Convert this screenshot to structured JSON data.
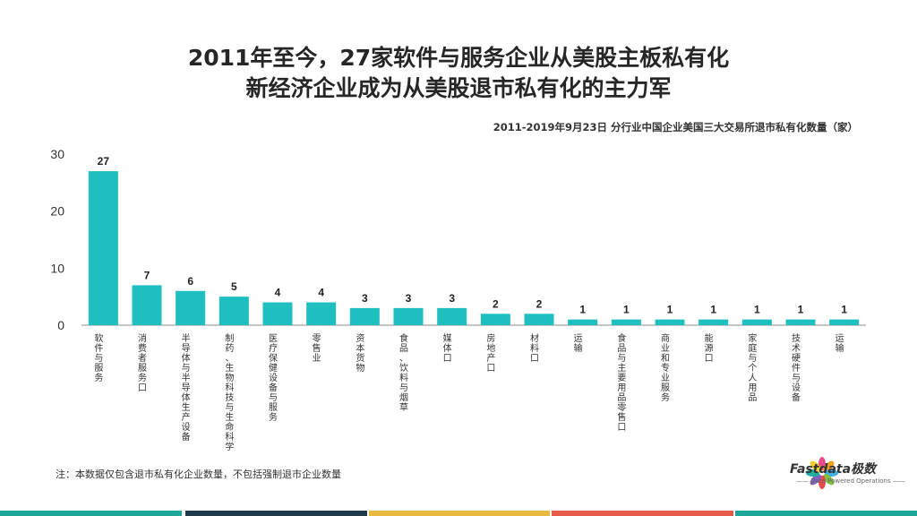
{
  "title_line1": "2011年至今，27家软件与服务企业从美股主板私有化",
  "title_line2": "新经济企业成为从美股退市私有化的主力军",
  "subtitle": "2011-2019年9月23日 分行业中国企业美国三大交易所退市私有化数量（家）",
  "footnote": "注：本数据仅包含退市私有化企业数量，不包括强制退市企业数量",
  "logo": {
    "name": "Fastdata极数",
    "tagline": "—— Data Powered Operations ——"
  },
  "colors": {
    "bar": "#1fbfbf",
    "axis": "#8c8c8c",
    "stripes": [
      "#1fa89a",
      "#1f3a4a",
      "#e8b840",
      "#e85a4a",
      "#1fa89a"
    ]
  },
  "chart_data": {
    "type": "bar",
    "categories": [
      "软件与服务",
      "消费者服务口",
      "半导体与半导体生产设备",
      "制药、生物科技与生命科学",
      "医疗保健设备与服务",
      "零售业",
      "资本货物",
      "食品、饮料与烟草",
      "媒体口",
      "房地产口",
      "材料口",
      "运输",
      "食品与主要用品零售口",
      "商业和专业服务",
      "能源口",
      "家庭与个人用品",
      "技术硬件与设备",
      "运输"
    ],
    "values": [
      27,
      7,
      6,
      5,
      4,
      4,
      3,
      3,
      3,
      2,
      2,
      1,
      1,
      1,
      1,
      1,
      1,
      1
    ],
    "y_ticks": [
      0,
      10,
      20,
      30
    ],
    "ylim": [
      0,
      30
    ],
    "data_labels": true,
    "grid": false
  }
}
